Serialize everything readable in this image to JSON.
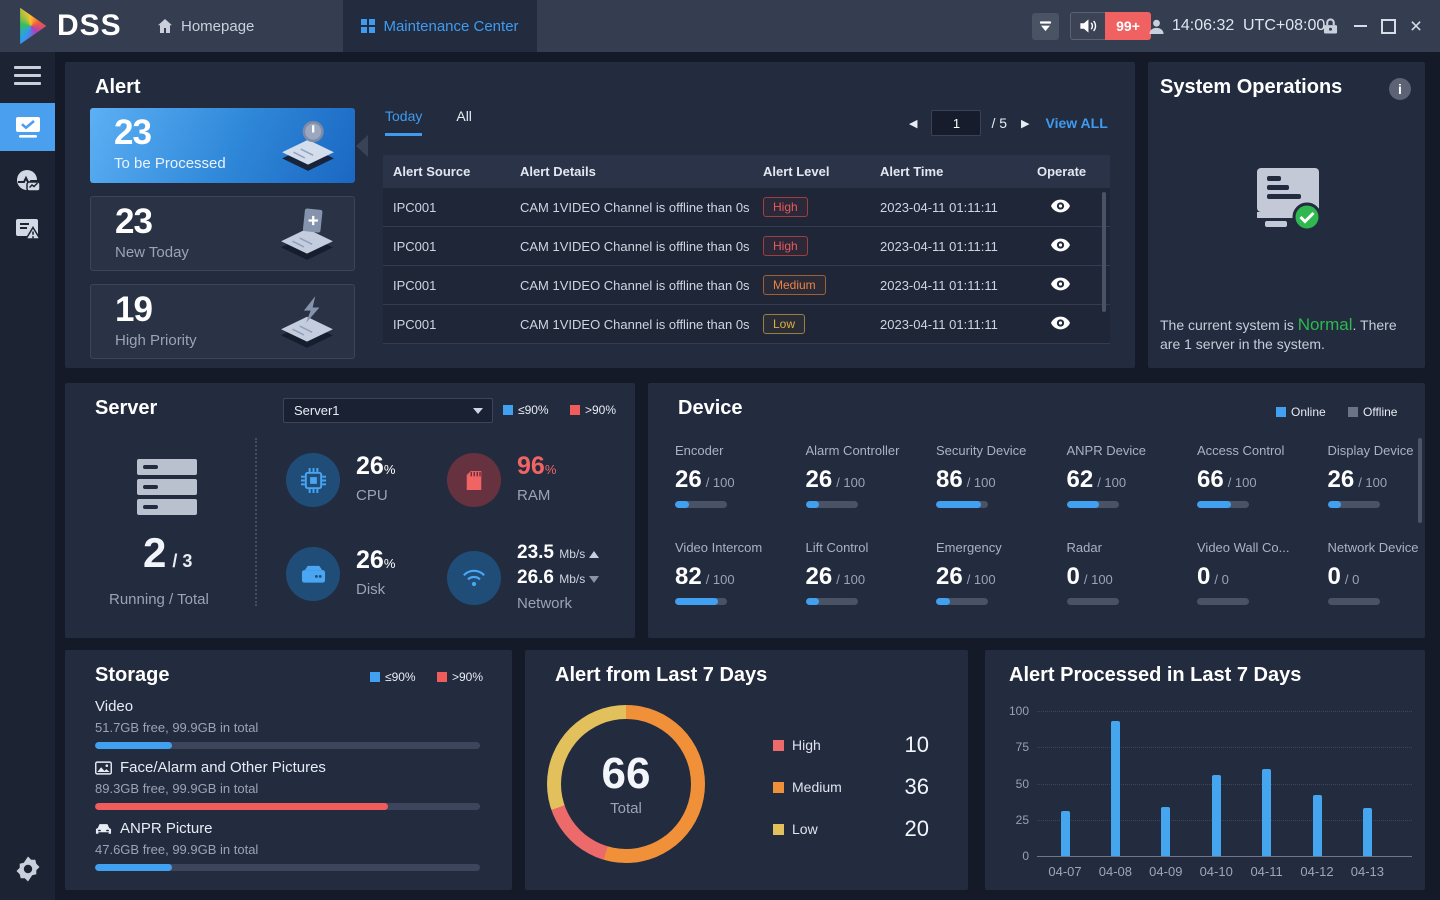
{
  "topbar": {
    "logo_text": "DSS",
    "homepage_tab": "Homepage",
    "maintenance_tab": "Maintenance Center",
    "notification_badge": "99+",
    "time": "14:06:32",
    "timezone": "UTC+08:00"
  },
  "alert": {
    "title": "Alert",
    "cards": [
      {
        "value": "23",
        "label": "To be Processed"
      },
      {
        "value": "23",
        "label": "New Today"
      },
      {
        "value": "19",
        "label": "High Priority"
      }
    ],
    "tab_today": "Today",
    "tab_all": "All",
    "page": "1",
    "page_total": "/ 5",
    "view_all": "View ALL",
    "columns": [
      "Alert Source",
      "Alert Details",
      "Alert Level",
      "Alert Time",
      "Operate"
    ],
    "rows": [
      {
        "source": "IPC001",
        "details": "CAM 1VIDEO Channel is offline than 0s",
        "level": "High",
        "time": "2023-04-11 01:11:11"
      },
      {
        "source": "IPC001",
        "details": "CAM 1VIDEO Channel is offline than 0s",
        "level": "High",
        "time": "2023-04-11 01:11:11"
      },
      {
        "source": "IPC001",
        "details": "CAM 1VIDEO Channel is offline than 0s",
        "level": "Medium",
        "time": "2023-04-11 01:11:11"
      },
      {
        "source": "IPC001",
        "details": "CAM 1VIDEO Channel is offline than 0s",
        "level": "Low",
        "time": "2023-04-11 01:11:11"
      }
    ]
  },
  "system_operations": {
    "title": "System Operations",
    "message_prefix": "The current system is ",
    "status": "Normal",
    "message_suffix": ". There are 1 server in the system."
  },
  "server": {
    "title": "Server",
    "selected_server": "Server1",
    "legend_ok": "≤90%",
    "legend_alert": ">90%",
    "running_value": "2",
    "total_value": "/ 3",
    "running_label": "Running / Total",
    "cpu": {
      "value": "26",
      "unit": "%",
      "label": "CPU"
    },
    "ram": {
      "value": "96",
      "unit": "%",
      "label": "RAM"
    },
    "disk": {
      "value": "26",
      "unit": "%",
      "label": "Disk"
    },
    "network": {
      "up": "23.5",
      "down": "26.6",
      "unit": "Mb/s",
      "label": "Network"
    }
  },
  "device": {
    "title": "Device",
    "legend_online": "Online",
    "legend_offline": "Offline",
    "items": [
      {
        "name": "Encoder",
        "online": 26,
        "total": 100
      },
      {
        "name": "Alarm Controller",
        "online": 26,
        "total": 100
      },
      {
        "name": "Security Device",
        "online": 86,
        "total": 100
      },
      {
        "name": "ANPR Device",
        "online": 62,
        "total": 100
      },
      {
        "name": "Access Control",
        "online": 66,
        "total": 100
      },
      {
        "name": "Display Device",
        "online": 26,
        "total": 100
      },
      {
        "name": "Video Intercom",
        "online": 82,
        "total": 100
      },
      {
        "name": "Lift Control",
        "online": 26,
        "total": 100
      },
      {
        "name": "Emergency",
        "online": 26,
        "total": 100
      },
      {
        "name": "Radar",
        "online": 0,
        "total": 100
      },
      {
        "name": "Video Wall Co...",
        "online": 0,
        "total": 0
      },
      {
        "name": "Network Device",
        "online": 0,
        "total": 0
      }
    ]
  },
  "storage": {
    "title": "Storage",
    "legend_ok": "≤90%",
    "legend_alert": ">90%",
    "items": [
      {
        "name": "Video",
        "detail": "51.7GB free, 99.9GB in total",
        "fill_percent": 20,
        "state": "ok",
        "icon": "none"
      },
      {
        "name": "Face/Alarm and Other Pictures",
        "detail": "89.3GB free, 99.9GB in total",
        "fill_percent": 76,
        "state": "alert",
        "icon": "picture"
      },
      {
        "name": "ANPR Picture",
        "detail": "47.6GB free, 99.9GB in total",
        "fill_percent": 20,
        "state": "ok",
        "icon": "car"
      }
    ]
  },
  "colors": {
    "accent_blue": "#3f9bf0",
    "alert_red": "#f05c5c",
    "ok_green": "#2eb84f",
    "bar_blue": "#45a5ef"
  },
  "chart_data": [
    {
      "type": "pie",
      "title": "Alert from Last 7 Days",
      "donut": true,
      "center_value": "66",
      "center_label": "Total",
      "slices": [
        {
          "label": "High",
          "value": 10,
          "color": "#ed6a6a"
        },
        {
          "label": "Medium",
          "value": 36,
          "color": "#f0913a"
        },
        {
          "label": "Low",
          "value": 20,
          "color": "#e2c05c"
        }
      ],
      "draw_order": [
        1,
        0,
        2
      ],
      "legend_position": "right"
    },
    {
      "type": "bar",
      "title": "Alert Processed in Last 7 Days",
      "categories": [
        "04-07",
        "04-08",
        "04-09",
        "04-10",
        "04-11",
        "04-12",
        "04-13"
      ],
      "values": [
        31,
        93,
        34,
        56,
        60,
        42,
        33
      ],
      "xlabel": "",
      "ylabel": "",
      "ylim": [
        0,
        100
      ],
      "yticks": [
        0,
        25,
        50,
        75,
        100
      ],
      "grid": "dotted",
      "bar_color": "#45a5ef",
      "legend_position": "none"
    }
  ]
}
